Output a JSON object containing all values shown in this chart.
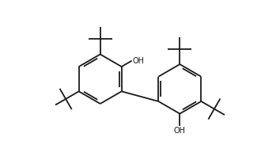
{
  "background_color": "#ffffff",
  "line_color": "#1a1a1a",
  "line_width": 1.3,
  "font_size": 7.0,
  "figsize": [
    3.54,
    2.12
  ],
  "dpi": 100
}
